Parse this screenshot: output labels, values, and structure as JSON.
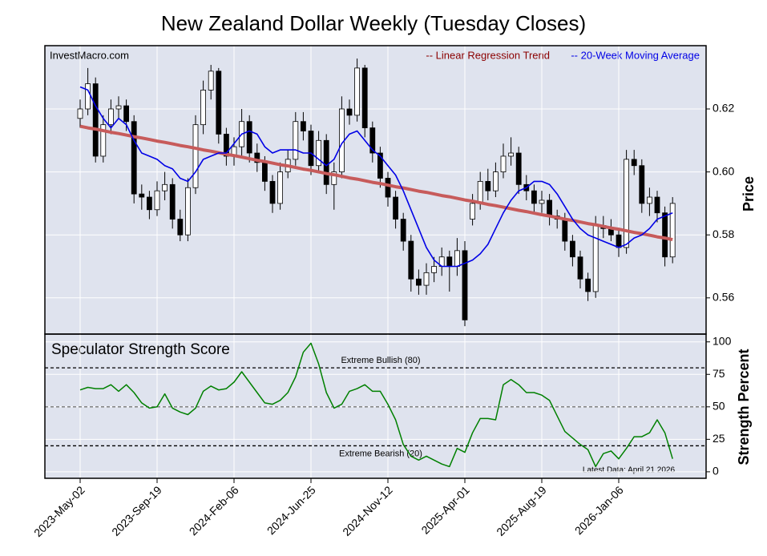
{
  "chart_data": [
    {
      "type": "candlestick",
      "title": "New Zealand Dollar Weekly (Tuesday Closes)",
      "source": "InvestMacro.com",
      "y_label": "Price",
      "categories": [
        "2023-May-02",
        null,
        null,
        null,
        null,
        null,
        null,
        null,
        null,
        null,
        "2023-Sep-19",
        null,
        null,
        null,
        null,
        null,
        null,
        null,
        null,
        null,
        "2024-Feb-06",
        null,
        null,
        null,
        null,
        null,
        null,
        null,
        null,
        null,
        "2024-Jun-25",
        null,
        null,
        null,
        null,
        null,
        null,
        null,
        null,
        null,
        "2024-Nov-12",
        null,
        null,
        null,
        null,
        null,
        null,
        null,
        null,
        null,
        "2025-Apr-01",
        null,
        null,
        null,
        null,
        null,
        null,
        null,
        null,
        null,
        "2025-Aug-19",
        null,
        null,
        null,
        null,
        null,
        null,
        null,
        null,
        null,
        "2026-Jan-06",
        null,
        null,
        null,
        null,
        null,
        null,
        null
      ],
      "open": [
        0.617,
        0.62,
        0.628,
        0.605,
        0.615,
        0.62,
        0.621,
        0.616,
        0.593,
        0.592,
        0.588,
        0.594,
        0.596,
        0.585,
        0.58,
        0.595,
        0.615,
        0.626,
        0.632,
        0.612,
        0.605,
        0.608,
        0.616,
        0.606,
        0.603,
        0.597,
        0.59,
        0.6,
        0.604,
        0.616,
        0.613,
        0.602,
        0.61,
        0.596,
        0.6,
        0.62,
        0.618,
        0.633,
        0.614,
        0.606,
        0.598,
        0.592,
        0.585,
        0.578,
        0.566,
        0.564,
        0.568,
        0.57,
        0.573,
        0.57,
        0.575,
        0.585,
        0.59,
        0.597,
        0.594,
        0.6,
        0.605,
        0.606,
        0.596,
        0.594,
        0.59,
        0.591,
        0.586,
        0.585,
        0.578,
        0.573,
        0.566,
        0.562,
        0.583,
        0.582,
        0.58,
        0.576,
        0.604,
        0.602,
        0.59,
        0.592,
        0.587,
        0.573
      ],
      "high": [
        0.623,
        0.633,
        0.63,
        0.618,
        0.623,
        0.624,
        0.623,
        0.618,
        0.596,
        0.594,
        0.597,
        0.6,
        0.598,
        0.588,
        0.598,
        0.618,
        0.629,
        0.634,
        0.633,
        0.614,
        0.611,
        0.62,
        0.618,
        0.609,
        0.605,
        0.599,
        0.603,
        0.607,
        0.619,
        0.619,
        0.615,
        0.613,
        0.612,
        0.603,
        0.624,
        0.623,
        0.636,
        0.634,
        0.616,
        0.608,
        0.6,
        0.594,
        0.587,
        0.58,
        0.569,
        0.571,
        0.573,
        0.576,
        0.575,
        0.579,
        0.578,
        0.593,
        0.6,
        0.601,
        0.603,
        0.609,
        0.611,
        0.608,
        0.599,
        0.596,
        0.594,
        0.593,
        0.588,
        0.587,
        0.58,
        0.575,
        0.568,
        0.586,
        0.586,
        0.585,
        0.582,
        0.607,
        0.607,
        0.604,
        0.595,
        0.594,
        0.589,
        0.592
      ],
      "low": [
        0.614,
        0.618,
        0.603,
        0.603,
        0.612,
        0.617,
        0.613,
        0.59,
        0.588,
        0.585,
        0.586,
        0.591,
        0.582,
        0.578,
        0.578,
        0.593,
        0.612,
        0.623,
        0.609,
        0.602,
        0.602,
        0.605,
        0.603,
        0.6,
        0.594,
        0.587,
        0.588,
        0.598,
        0.602,
        0.61,
        0.599,
        0.6,
        0.593,
        0.588,
        0.598,
        0.615,
        0.616,
        0.611,
        0.603,
        0.595,
        0.589,
        0.582,
        0.575,
        0.562,
        0.561,
        0.561,
        0.565,
        0.567,
        0.562,
        0.567,
        0.551,
        0.583,
        0.588,
        0.591,
        0.592,
        0.598,
        0.602,
        0.593,
        0.591,
        0.587,
        0.587,
        0.583,
        0.582,
        0.575,
        0.57,
        0.563,
        0.559,
        0.56,
        0.579,
        0.578,
        0.573,
        0.574,
        0.599,
        0.587,
        0.586,
        0.584,
        0.57,
        0.571
      ],
      "close": [
        0.62,
        0.628,
        0.605,
        0.615,
        0.62,
        0.621,
        0.616,
        0.593,
        0.592,
        0.588,
        0.594,
        0.596,
        0.585,
        0.58,
        0.595,
        0.615,
        0.626,
        0.632,
        0.612,
        0.605,
        0.608,
        0.616,
        0.606,
        0.603,
        0.597,
        0.59,
        0.6,
        0.604,
        0.616,
        0.613,
        0.602,
        0.61,
        0.596,
        0.6,
        0.62,
        0.618,
        0.633,
        0.614,
        0.606,
        0.598,
        0.592,
        0.585,
        0.578,
        0.566,
        0.564,
        0.568,
        0.57,
        0.573,
        0.57,
        0.575,
        0.553,
        0.59,
        0.597,
        0.594,
        0.6,
        0.605,
        0.606,
        0.596,
        0.594,
        0.59,
        0.591,
        0.586,
        0.585,
        0.578,
        0.573,
        0.566,
        0.562,
        0.583,
        0.582,
        0.58,
        0.576,
        0.604,
        0.602,
        0.59,
        0.592,
        0.587,
        0.573,
        0.59
      ],
      "series": [
        {
          "name": "-- Linear Regression Trend",
          "color": "#c75b5b",
          "values": [
            0.6145,
            0.614,
            0.6136,
            0.6131,
            0.6126,
            0.6122,
            0.6117,
            0.6112,
            0.6108,
            0.6103,
            0.6098,
            0.6094,
            0.6089,
            0.6084,
            0.608,
            0.6075,
            0.607,
            0.6066,
            0.6061,
            0.6056,
            0.6052,
            0.6047,
            0.6042,
            0.6037,
            0.6033,
            0.6028,
            0.6023,
            0.6019,
            0.6014,
            0.6009,
            0.6005,
            0.6,
            0.5995,
            0.5991,
            0.5986,
            0.5981,
            0.5977,
            0.5972,
            0.5967,
            0.5963,
            0.5958,
            0.5953,
            0.5949,
            0.5944,
            0.5939,
            0.5935,
            0.593,
            0.5925,
            0.5921,
            0.5916,
            0.5911,
            0.5907,
            0.5902,
            0.5897,
            0.5893,
            0.5888,
            0.5883,
            0.5878,
            0.5874,
            0.5869,
            0.5864,
            0.586,
            0.5855,
            0.585,
            0.5846,
            0.5841,
            0.5836,
            0.5832,
            0.5827,
            0.5822,
            0.5818,
            0.5813,
            0.5808,
            0.5804,
            0.5799,
            0.5794,
            0.579,
            0.5785
          ]
        },
        {
          "name": "-- 20-Week Moving Average",
          "color": "#0000e6",
          "values": [
            0.627,
            0.626,
            0.621,
            0.617,
            0.614,
            0.617,
            0.615,
            0.61,
            0.606,
            0.605,
            0.604,
            0.602,
            0.601,
            0.598,
            0.597,
            0.6,
            0.604,
            0.605,
            0.606,
            0.606,
            0.609,
            0.612,
            0.613,
            0.612,
            0.608,
            0.606,
            0.607,
            0.607,
            0.607,
            0.606,
            0.606,
            0.604,
            0.602,
            0.604,
            0.609,
            0.612,
            0.613,
            0.61,
            0.607,
            0.605,
            0.602,
            0.599,
            0.594,
            0.588,
            0.582,
            0.576,
            0.572,
            0.57,
            0.57,
            0.57,
            0.571,
            0.572,
            0.574,
            0.577,
            0.582,
            0.587,
            0.591,
            0.594,
            0.595,
            0.597,
            0.597,
            0.596,
            0.593,
            0.589,
            0.585,
            0.582,
            0.58,
            0.579,
            0.578,
            0.577,
            0.576,
            0.577,
            0.579,
            0.58,
            0.582,
            0.585,
            0.586,
            0.587
          ]
        }
      ],
      "ylim": [
        0.5485,
        0.6401
      ],
      "yticks": [
        0.56,
        0.58,
        {
          "value": 0.6,
          "label": "0.60"
        },
        0.62
      ],
      "grid": true
    },
    {
      "type": "line",
      "title": "Speculator Strength Score",
      "y_label": "Strength Percent",
      "annotation": "Latest Data: April 21 2026",
      "series": [
        {
          "color": "#008000",
          "values": [
            63,
            65,
            64,
            64,
            67,
            62,
            67,
            61,
            53,
            49,
            50,
            60,
            49,
            46,
            44,
            49,
            62,
            66,
            63,
            64,
            69,
            77,
            69,
            61,
            53,
            52,
            55,
            61,
            73,
            92,
            99,
            83,
            61,
            49,
            52,
            62,
            64,
            67,
            62,
            62,
            52,
            40,
            21,
            12,
            9,
            12,
            9,
            6,
            4,
            18,
            15,
            30,
            41,
            41,
            40,
            67,
            71,
            67,
            61,
            61,
            59,
            55,
            43,
            31,
            26,
            21,
            17,
            4,
            14,
            16,
            10,
            18,
            27,
            27,
            30,
            40,
            30,
            10
          ]
        }
      ],
      "reference_lines": [
        {
          "value": 80,
          "label": "Extreme Bullish (80)",
          "color": "#000000"
        },
        {
          "value": 50,
          "color": "#777777"
        },
        {
          "value": 20,
          "label": "Extreme Bearish (20)",
          "color": "#000000"
        }
      ],
      "ylim": [
        -5,
        106
      ],
      "yticks": [
        0,
        25,
        50,
        75,
        100
      ],
      "grid": true
    }
  ]
}
